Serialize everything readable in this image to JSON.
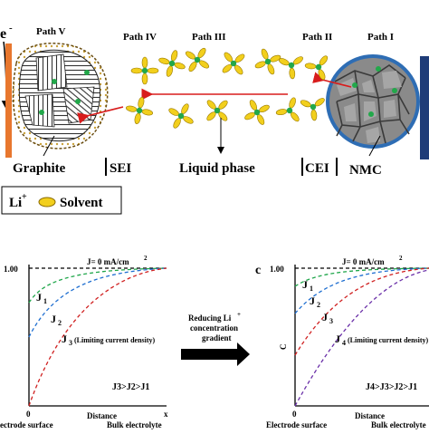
{
  "top": {
    "electron": "e",
    "electron_sup": "-",
    "paths": [
      "Path V",
      "Path IV",
      "Path III",
      "Path II",
      "Path I"
    ],
    "labels": {
      "graphite": "Graphite",
      "sei": "SEI",
      "liquid": "Liquid phase",
      "cei": "CEI",
      "nmc": "NMC"
    },
    "legend": {
      "li": "Li",
      "li_sup": "+",
      "solvent": "Solvent"
    }
  },
  "bottom_left": {
    "ytick": "1.00",
    "j0": "J= 0 mA/cm",
    "j0_sup": "2",
    "curves": [
      "J",
      "J",
      "J"
    ],
    "subs": [
      "1",
      "2",
      "3"
    ],
    "j3_note": "(Limiting current density)",
    "relation": "J3>J2>J1",
    "x0": "0",
    "xend": "x",
    "xlabel": "Distance",
    "left_label": "ectrode surface",
    "right_label": "Bulk electrolyte"
  },
  "middle": {
    "line1": "Reducing Li",
    "line1_sup": "+",
    "line2": "concentration",
    "line3": "gradient"
  },
  "bottom_right": {
    "panel": "c",
    "ytick": "1.00",
    "j0": "J= 0 mA/cm",
    "j0_sup": "2",
    "curves": [
      "J",
      "J",
      "J",
      "J"
    ],
    "subs": [
      "1",
      "2",
      "3",
      "4"
    ],
    "j4_note": "(Limiting current density)",
    "relation": "J4>J3>J2>J1",
    "ylabel": "C",
    "x0": "0",
    "xlabel": "Distance",
    "left_label": "Electrode surface",
    "right_label": "Bulk electrolyte"
  },
  "colors": {
    "electrode": "#e8772e",
    "nmc_fill": "#8a8a8a",
    "nmc_edge": "#2e6db4",
    "li": "#22a84a",
    "solvent": "#f2cf1d",
    "arrow": "#d81c1c",
    "curve1": "#1fa64a",
    "curve2": "#1f6fd1",
    "curve3": "#d02020",
    "curve4": "#6a2fa8"
  }
}
